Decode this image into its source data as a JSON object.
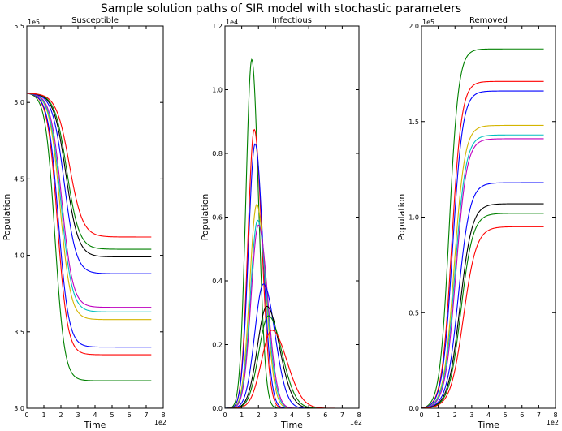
{
  "figure": {
    "title": "Sample solution paths of SIR model with stochastic parameters"
  },
  "chart_data": [
    {
      "type": "line",
      "title": "Susceptible",
      "xlabel": "Time",
      "ylabel": "Population",
      "x_multiplier": "1e2",
      "y_multiplier": "1e5",
      "xlim": [
        0,
        8
      ],
      "ylim": [
        3.0,
        5.5
      ],
      "xticks": [
        "0",
        "1",
        "2",
        "3",
        "4",
        "5",
        "6",
        "7",
        "8"
      ],
      "yticks": [
        "3.0",
        "3.5",
        "4.0",
        "4.5",
        "5.0",
        "5.5"
      ],
      "x_end": 7.3,
      "series": [
        {
          "name": "green-1",
          "color": "#008000",
          "start": 5.06,
          "end": 3.18,
          "midpoint": 1.65,
          "steepness": 3.6
        },
        {
          "name": "red-1",
          "color": "#ff0000",
          "start": 5.06,
          "end": 3.35,
          "midpoint": 1.8,
          "steepness": 3.4
        },
        {
          "name": "blue-1",
          "color": "#0000ff",
          "start": 5.06,
          "end": 3.4,
          "midpoint": 1.85,
          "steepness": 3.3
        },
        {
          "name": "yellow",
          "color": "#d4b500",
          "start": 5.06,
          "end": 3.58,
          "midpoint": 1.95,
          "steepness": 3.2
        },
        {
          "name": "cyan",
          "color": "#00bfbf",
          "start": 5.06,
          "end": 3.63,
          "midpoint": 2.0,
          "steepness": 3.1
        },
        {
          "name": "magenta",
          "color": "#bf00bf",
          "start": 5.06,
          "end": 3.66,
          "midpoint": 2.05,
          "steepness": 3.1
        },
        {
          "name": "blue-2",
          "color": "#0000ff",
          "start": 5.06,
          "end": 3.88,
          "midpoint": 2.2,
          "steepness": 2.9
        },
        {
          "name": "black",
          "color": "#000000",
          "start": 5.06,
          "end": 3.99,
          "midpoint": 2.3,
          "steepness": 2.8
        },
        {
          "name": "green-2",
          "color": "#008000",
          "start": 5.06,
          "end": 4.04,
          "midpoint": 2.35,
          "steepness": 2.8
        },
        {
          "name": "red-2",
          "color": "#ff0000",
          "start": 5.06,
          "end": 4.12,
          "midpoint": 2.5,
          "steepness": 2.6
        }
      ]
    },
    {
      "type": "line",
      "title": "Infectious",
      "xlabel": "Time",
      "ylabel": "Population",
      "x_multiplier": "1e2",
      "y_multiplier": "1e4",
      "xlim": [
        0,
        8
      ],
      "ylim": [
        0.0,
        1.2
      ],
      "xticks": [
        "0",
        "1",
        "2",
        "3",
        "4",
        "5",
        "6",
        "7",
        "8"
      ],
      "yticks": [
        "0.0",
        "0.2",
        "0.4",
        "0.6",
        "0.8",
        "1.0",
        "1.2"
      ],
      "x_end": 7.3,
      "series": [
        {
          "name": "green",
          "color": "#008000",
          "peak": 1.095,
          "peak_time": 1.6,
          "rise": 0.35,
          "fall": 0.4
        },
        {
          "name": "red",
          "color": "#ff0000",
          "peak": 0.875,
          "peak_time": 1.75,
          "rise": 0.38,
          "fall": 0.45
        },
        {
          "name": "blue",
          "color": "#0000ff",
          "peak": 0.83,
          "peak_time": 1.8,
          "rise": 0.4,
          "fall": 0.47
        },
        {
          "name": "yellow",
          "color": "#d4b500",
          "peak": 0.64,
          "peak_time": 1.9,
          "rise": 0.42,
          "fall": 0.52
        },
        {
          "name": "cyan",
          "color": "#00bfbf",
          "peak": 0.59,
          "peak_time": 1.95,
          "rise": 0.43,
          "fall": 0.54
        },
        {
          "name": "magenta",
          "color": "#bf00bf",
          "peak": 0.575,
          "peak_time": 2.0,
          "rise": 0.44,
          "fall": 0.55
        },
        {
          "name": "blue-2",
          "color": "#0000ff",
          "peak": 0.39,
          "peak_time": 2.3,
          "rise": 0.52,
          "fall": 0.68
        },
        {
          "name": "black",
          "color": "#000000",
          "peak": 0.32,
          "peak_time": 2.5,
          "rise": 0.56,
          "fall": 0.75
        },
        {
          "name": "green-2",
          "color": "#008000",
          "peak": 0.29,
          "peak_time": 2.6,
          "rise": 0.58,
          "fall": 0.8
        },
        {
          "name": "red-2",
          "color": "#ff0000",
          "peak": 0.245,
          "peak_time": 2.8,
          "rise": 0.62,
          "fall": 0.9
        }
      ]
    },
    {
      "type": "line",
      "title": "Removed",
      "xlabel": "Time",
      "ylabel": "Population",
      "x_multiplier": "1e2",
      "y_multiplier": "1e5",
      "xlim": [
        0,
        8
      ],
      "ylim": [
        0.0,
        2.0
      ],
      "xticks": [
        "0",
        "1",
        "2",
        "3",
        "4",
        "5",
        "6",
        "7",
        "8"
      ],
      "yticks": [
        "0.0",
        "0.5",
        "1.0",
        "1.5",
        "2.0"
      ],
      "x_end": 7.3,
      "series": [
        {
          "name": "green-1",
          "color": "#008000",
          "start": 0.0,
          "end": 1.88,
          "midpoint": 1.65,
          "steepness": 3.6
        },
        {
          "name": "red-1",
          "color": "#ff0000",
          "start": 0.0,
          "end": 1.71,
          "midpoint": 1.8,
          "steepness": 3.4
        },
        {
          "name": "blue-1",
          "color": "#0000ff",
          "start": 0.0,
          "end": 1.66,
          "midpoint": 1.85,
          "steepness": 3.3
        },
        {
          "name": "yellow",
          "color": "#d4b500",
          "start": 0.0,
          "end": 1.48,
          "midpoint": 1.95,
          "steepness": 3.2
        },
        {
          "name": "cyan",
          "color": "#00bfbf",
          "start": 0.0,
          "end": 1.43,
          "midpoint": 2.0,
          "steepness": 3.1
        },
        {
          "name": "magenta",
          "color": "#bf00bf",
          "start": 0.0,
          "end": 1.41,
          "midpoint": 2.05,
          "steepness": 3.1
        },
        {
          "name": "blue-2",
          "color": "#0000ff",
          "start": 0.0,
          "end": 1.18,
          "midpoint": 2.2,
          "steepness": 2.9
        },
        {
          "name": "black",
          "color": "#000000",
          "start": 0.0,
          "end": 1.07,
          "midpoint": 2.3,
          "steepness": 2.8
        },
        {
          "name": "green-2",
          "color": "#008000",
          "start": 0.0,
          "end": 1.02,
          "midpoint": 2.35,
          "steepness": 2.8
        },
        {
          "name": "red-2",
          "color": "#ff0000",
          "start": 0.0,
          "end": 0.95,
          "midpoint": 2.5,
          "steepness": 2.6
        }
      ]
    }
  ]
}
